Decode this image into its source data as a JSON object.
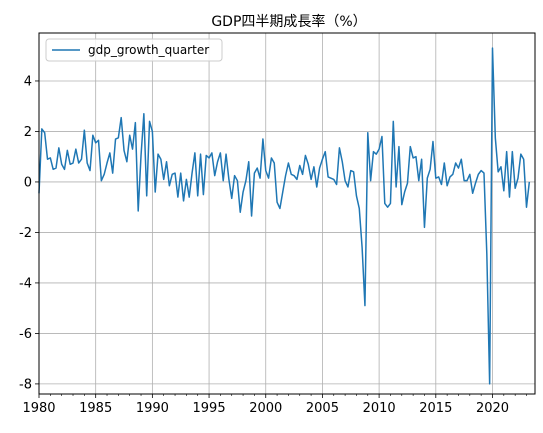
{
  "chart_data": {
    "type": "line",
    "title": "GDP四半期成長率（%）",
    "xlabel": "",
    "ylabel": "",
    "xlim": [
      1980.0,
      2023.75
    ],
    "ylim": [
      -8.4,
      5.9
    ],
    "x_ticks": [
      1980,
      1985,
      1990,
      1995,
      2000,
      2005,
      2010,
      2015,
      2020
    ],
    "y_ticks": [
      -8,
      -6,
      -4,
      -2,
      0,
      2,
      4
    ],
    "grid": true,
    "legend_position": "top-left",
    "series": [
      {
        "name": "gdp_growth_quarter",
        "color": "#1f77b4",
        "x_start": 1980.0,
        "step": 0.25,
        "values": [
          -0.45,
          2.1,
          1.95,
          0.9,
          0.95,
          0.5,
          0.55,
          1.35,
          0.7,
          0.5,
          1.25,
          0.7,
          0.75,
          1.3,
          0.75,
          0.9,
          2.05,
          0.75,
          0.45,
          1.85,
          1.55,
          1.65,
          0.05,
          0.3,
          0.75,
          1.15,
          0.35,
          1.7,
          1.75,
          2.55,
          1.25,
          0.8,
          1.85,
          1.3,
          2.35,
          -1.15,
          1.05,
          2.7,
          -0.55,
          2.4,
          2.0,
          -0.4,
          1.1,
          0.9,
          0.1,
          0.8,
          -0.15,
          0.3,
          0.35,
          -0.6,
          0.35,
          -0.75,
          0.1,
          -0.6,
          0.35,
          1.15,
          -0.55,
          1.1,
          -0.5,
          1.05,
          0.95,
          1.15,
          0.25,
          0.8,
          1.15,
          0.05,
          1.1,
          0.1,
          -0.65,
          0.25,
          0.05,
          -1.2,
          -0.4,
          0.05,
          0.8,
          -1.35,
          0.35,
          0.55,
          0.15,
          1.7,
          0.45,
          0.15,
          0.95,
          0.75,
          -0.8,
          -1.05,
          -0.4,
          0.25,
          0.75,
          0.3,
          0.25,
          0.1,
          0.65,
          0.3,
          1.05,
          0.7,
          0.1,
          0.6,
          -0.2,
          0.55,
          0.9,
          1.2,
          0.2,
          0.15,
          0.1,
          -0.1,
          1.35,
          0.8,
          0.05,
          -0.2,
          0.45,
          0.4,
          -0.55,
          -1.05,
          -2.6,
          -4.9,
          1.95,
          0.05,
          1.2,
          1.1,
          1.3,
          1.8,
          -0.85,
          -1.0,
          -0.85,
          2.4,
          -0.2,
          1.4,
          -0.9,
          -0.4,
          -0.05,
          1.4,
          0.95,
          1.0,
          0.05,
          0.9,
          -1.8,
          0.15,
          0.5,
          1.6,
          0.15,
          0.2,
          -0.1,
          0.75,
          -0.15,
          0.2,
          0.3,
          0.75,
          0.55,
          0.9,
          0.05,
          0.05,
          0.3,
          -0.45,
          -0.05,
          0.3,
          0.45,
          0.35,
          -2.85,
          -8.0,
          5.3,
          1.75,
          0.4,
          0.6,
          -0.35,
          1.2,
          -0.6,
          1.2,
          -0.25,
          0.15,
          1.1,
          0.9,
          -1.0,
          0.0
        ]
      }
    ]
  }
}
